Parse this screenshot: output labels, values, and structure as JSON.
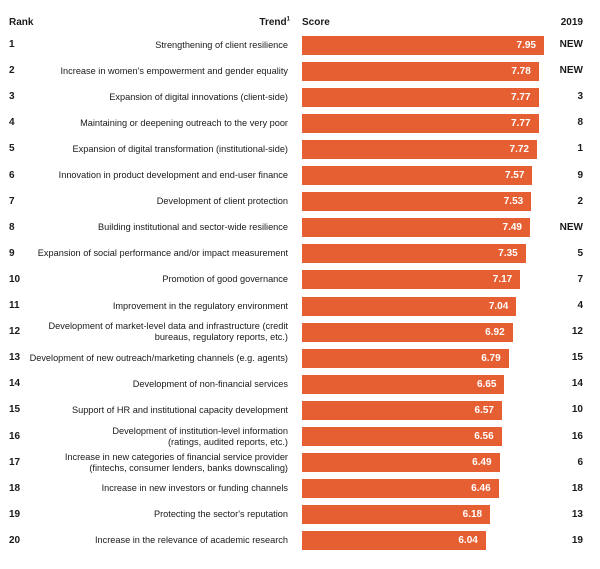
{
  "headers": {
    "rank": "Rank",
    "trend": "Trend",
    "trend_note": "1",
    "score": "Score",
    "prev": "2019"
  },
  "chart_data": {
    "type": "bar",
    "orientation": "horizontal",
    "xlim": [
      0,
      8.0
    ],
    "grid": false,
    "legend": "none",
    "bar_color": "#e65f32",
    "rows": [
      {
        "rank": "1",
        "lines": [
          "Strengthening of client resilience"
        ],
        "score": 7.95,
        "prev": "NEW"
      },
      {
        "rank": "2",
        "lines": [
          "Increase in women's empowerment and gender equality"
        ],
        "score": 7.78,
        "prev": "NEW"
      },
      {
        "rank": "3",
        "lines": [
          "Expansion of digital innovations (client-side)"
        ],
        "score": 7.77,
        "prev": "3"
      },
      {
        "rank": "4",
        "lines": [
          "Maintaining or deepening outreach to the very poor"
        ],
        "score": 7.77,
        "prev": "8"
      },
      {
        "rank": "5",
        "lines": [
          "Expansion of digital transformation (institutional-side)"
        ],
        "score": 7.72,
        "prev": "1"
      },
      {
        "rank": "6",
        "lines": [
          "Innovation in product development and end-user finance"
        ],
        "score": 7.57,
        "prev": "9"
      },
      {
        "rank": "7",
        "lines": [
          "Development of client protection"
        ],
        "score": 7.53,
        "prev": "2"
      },
      {
        "rank": "8",
        "lines": [
          "Building institutional and sector-wide resilience"
        ],
        "score": 7.49,
        "prev": "NEW"
      },
      {
        "rank": "9",
        "lines": [
          "Expansion of social performance and/or impact measurement"
        ],
        "score": 7.35,
        "prev": "5"
      },
      {
        "rank": "10",
        "lines": [
          "Promotion of good governance"
        ],
        "score": 7.17,
        "prev": "7"
      },
      {
        "rank": "11",
        "lines": [
          "Improvement in the regulatory environment"
        ],
        "score": 7.04,
        "prev": "4"
      },
      {
        "rank": "12",
        "lines": [
          "Development of market-level data and infrastructure (credit",
          "bureaus, regulatory reports, etc.)"
        ],
        "score": 6.92,
        "prev": "12"
      },
      {
        "rank": "13",
        "lines": [
          "Development of new outreach/marketing channels (e.g. agents)"
        ],
        "score": 6.79,
        "prev": "15"
      },
      {
        "rank": "14",
        "lines": [
          "Development of non-financial services"
        ],
        "score": 6.65,
        "prev": "14"
      },
      {
        "rank": "15",
        "lines": [
          "Support of HR and institutional capacity development"
        ],
        "score": 6.57,
        "prev": "10"
      },
      {
        "rank": "16",
        "lines": [
          "Development of institution-level information",
          "(ratings, audited reports, etc.)"
        ],
        "score": 6.56,
        "prev": "16"
      },
      {
        "rank": "17",
        "lines": [
          "Increase in new categories of financial service provider",
          "(fintechs, consumer lenders, banks downscaling)"
        ],
        "score": 6.49,
        "prev": "6"
      },
      {
        "rank": "18",
        "lines": [
          "Increase in new investors or funding channels"
        ],
        "score": 6.46,
        "prev": "18"
      },
      {
        "rank": "19",
        "lines": [
          "Protecting the sector's reputation"
        ],
        "score": 6.18,
        "prev": "13"
      },
      {
        "rank": "20",
        "lines": [
          "Increase in the relevance of academic research"
        ],
        "score": 6.04,
        "prev": "19"
      }
    ]
  }
}
